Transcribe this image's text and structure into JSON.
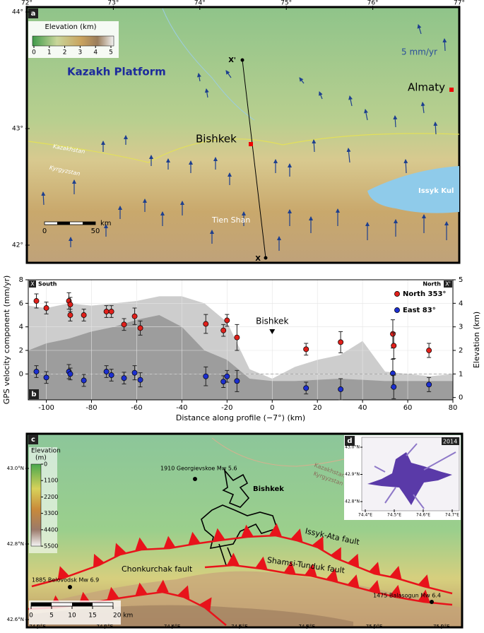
{
  "panel_a": {
    "label": "a",
    "legend_title": "Elevation (km)",
    "legend_ticks": [
      0,
      1,
      2,
      3,
      4,
      5
    ],
    "xticks": [
      {
        "value": 72,
        "label": "72°"
      },
      {
        "value": 73,
        "label": "73°"
      },
      {
        "value": 74,
        "label": "74°"
      },
      {
        "value": 75,
        "label": "75°"
      },
      {
        "value": 76,
        "label": "76°"
      },
      {
        "value": 77,
        "label": "77°"
      }
    ],
    "yticks": [
      {
        "value": 44,
        "label": "44°"
      },
      {
        "value": 43,
        "label": "43°"
      },
      {
        "value": 42,
        "label": "42°"
      }
    ],
    "vector_scale": "5 mm/yr",
    "region": "Kazakh Platform",
    "cities": [
      "Almaty",
      "Bishkek"
    ],
    "countries": [
      "Kazakhstan",
      "Kyrgyzstan"
    ],
    "range": "Tien Shan",
    "lake": "Issyk Kul",
    "profile_start": "X",
    "profile_end": "X'",
    "scale_ticks": [
      0,
      50
    ],
    "scale_unit": "km"
  },
  "chart_data": {
    "type": "scatter",
    "label": "b",
    "xlabel": "Distance along profile (−7°) (km)",
    "ylabel": "GPS velocity component (mm/yr)",
    "y2label": "Elevation (km)",
    "xlim": [
      -108,
      80
    ],
    "xticks": [
      -100,
      -80,
      -60,
      -40,
      -20,
      0,
      20,
      40,
      60,
      80
    ],
    "ylim": [
      -2.2,
      8
    ],
    "yticks": [
      0,
      2,
      4,
      6,
      8
    ],
    "y2lim": [
      -0.1,
      5
    ],
    "y2ticks": [
      0,
      1,
      2,
      3,
      4,
      5
    ],
    "grid": true,
    "start_box": "X",
    "start_label": "South",
    "end_label": "North",
    "end_box": "X'",
    "annotation": {
      "text": "Bishkek",
      "x": 0
    },
    "series": [
      {
        "name": "North 353°",
        "color": "#e0201b",
        "x": [
          -104.4,
          -100,
          -90,
          -89.4,
          -89.4,
          -83.4,
          -73.4,
          -71.2,
          -65.6,
          -60.9,
          -58.4,
          -29.4,
          -21.6,
          -20,
          -15.6,
          15,
          30.3,
          53.4,
          53.8,
          69.4
        ],
        "values": [
          6.2,
          5.6,
          6.2,
          5.9,
          5.0,
          5.0,
          5.3,
          5.3,
          4.2,
          4.9,
          3.9,
          4.25,
          3.7,
          4.55,
          3.1,
          2.1,
          2.7,
          3.4,
          2.4,
          2.0
        ],
        "errors": [
          0.6,
          0.5,
          0.7,
          0.6,
          0.5,
          0.5,
          0.5,
          0.5,
          0.5,
          0.7,
          0.6,
          0.8,
          0.5,
          0.5,
          1.1,
          0.5,
          0.9,
          1.2,
          1.1,
          0.6
        ]
      },
      {
        "name": "East 83°",
        "color": "#1c2fd0",
        "x": [
          -104.4,
          -100,
          -90,
          -89.4,
          -83.4,
          -73.4,
          -71.2,
          -65.6,
          -60.9,
          -58.4,
          -29.4,
          -21.6,
          -20,
          -15.6,
          15,
          30.3,
          53.4,
          53.8,
          69.4
        ],
        "values": [
          0.2,
          -0.3,
          0.2,
          0,
          -0.55,
          0.2,
          -0.1,
          -0.35,
          0.1,
          -0.5,
          -0.2,
          -0.65,
          -0.2,
          -0.6,
          -1.2,
          -1.3,
          0.05,
          -1.1,
          -0.9
        ],
        "errors": [
          0.5,
          0.5,
          0.6,
          0.5,
          0.5,
          0.5,
          0.5,
          0.5,
          0.6,
          0.6,
          0.8,
          0.5,
          0.5,
          0.9,
          0.5,
          0.9,
          1.2,
          1.0,
          0.6
        ]
      }
    ],
    "elevation_x": [
      -108,
      -100,
      -90,
      -80,
      -70,
      -60,
      -50,
      -40,
      -30,
      -20,
      -10,
      0,
      10,
      20,
      30,
      40,
      50,
      60,
      70,
      80
    ],
    "elevation_bands": [
      {
        "color": "#cdcdcd",
        "axis": "y2",
        "values": [
          3.9,
          3.8,
          4.0,
          3.9,
          4.0,
          4.1,
          4.3,
          4.3,
          4.0,
          3.2,
          1.2,
          0.8,
          1.3,
          1.6,
          1.8,
          2.4,
          1.1,
          1.0,
          0.9,
          1.0
        ]
      },
      {
        "color": "#9d9d9d",
        "axis": "y2",
        "values": [
          2.0,
          2.3,
          2.5,
          2.8,
          3.0,
          3.3,
          3.5,
          3.0,
          2.0,
          1.6,
          0.8,
          0.7,
          0.7,
          0.75,
          0.8,
          0.75,
          0.7,
          0.7,
          0.7,
          0.7
        ]
      }
    ]
  },
  "panel_c": {
    "label": "c",
    "colorbar_title": "Elevation",
    "colorbar_unit": "(m)",
    "colorbar_ticks": [
      0,
      1100,
      2200,
      3300,
      4400,
      5500
    ],
    "xticks": [
      {
        "value": 74.0,
        "label": "74.0°E"
      },
      {
        "value": 74.2,
        "label": "74.2°E"
      },
      {
        "value": 74.4,
        "label": "74.4°E"
      },
      {
        "value": 74.6,
        "label": "74.6°E"
      },
      {
        "value": 74.8,
        "label": "74.8°E"
      },
      {
        "value": 75.0,
        "label": "75.0°E"
      },
      {
        "value": 75.2,
        "label": "75.2°E"
      }
    ],
    "yticks": [
      {
        "value": 43.0,
        "label": "43.0°N"
      },
      {
        "value": 42.8,
        "label": "42.8°N"
      },
      {
        "value": 42.6,
        "label": "42.6°N"
      }
    ],
    "events": [
      "1910 Georgievskoe Mw 5.6",
      "1885 Belovodsk Mw 6.9",
      "1475 Balasogun Mw 6.4"
    ],
    "city": "Bishkek",
    "countries": [
      "Kazakhstan",
      "Kyrgyzstan"
    ],
    "faults": [
      "Issyk-Ata fault",
      "Shamsi-Tunduk fault",
      "Chonkurchak fault"
    ],
    "scale_ticks": [
      0,
      5,
      10,
      15,
      {
        "value": 20,
        "label": "20 km"
      }
    ]
  },
  "panel_d": {
    "label": "d",
    "year": "2014",
    "xticks": [
      {
        "value": 74.4,
        "label": "74.4°E"
      },
      {
        "value": 74.5,
        "label": "74.5°E"
      },
      {
        "value": 74.6,
        "label": "74.6°E"
      },
      {
        "value": 74.7,
        "label": "74.7°E"
      }
    ],
    "yticks": [
      {
        "value": 43.0,
        "label": "43.0°N"
      },
      {
        "value": 42.9,
        "label": "42.9°N"
      },
      {
        "value": 42.8,
        "label": "42.8°N"
      }
    ]
  }
}
